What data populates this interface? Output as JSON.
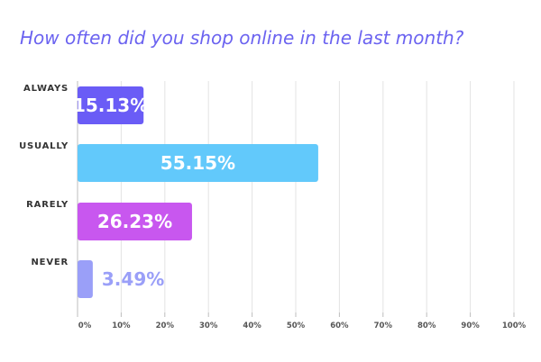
{
  "chart_data": {
    "type": "bar",
    "orientation": "horizontal",
    "title": "How often did you shop online in the last month?",
    "categories": [
      "ALWAYS",
      "USUALLY",
      "RARELY",
      "NEVER"
    ],
    "values": [
      15.13,
      55.15,
      26.23,
      3.49
    ],
    "value_labels": [
      "15.13%",
      "55.15%",
      "26.23%",
      "3.49%"
    ],
    "bar_colors": [
      "#6a5cf6",
      "#62c9fb",
      "#c857ef",
      "#9a9ff8"
    ],
    "label_colors": [
      "#ffffff",
      "#ffffff",
      "#ffffff",
      "#9a9ff8"
    ],
    "xlim": [
      0,
      100
    ],
    "x_ticks": [
      0,
      10,
      20,
      30,
      40,
      50,
      60,
      70,
      80,
      90,
      100
    ],
    "x_tick_labels": [
      "0%",
      "10%",
      "20%",
      "30%",
      "40%",
      "50%",
      "60%",
      "70%",
      "80%",
      "90%",
      "100%"
    ],
    "grid": true,
    "legend": "none"
  }
}
